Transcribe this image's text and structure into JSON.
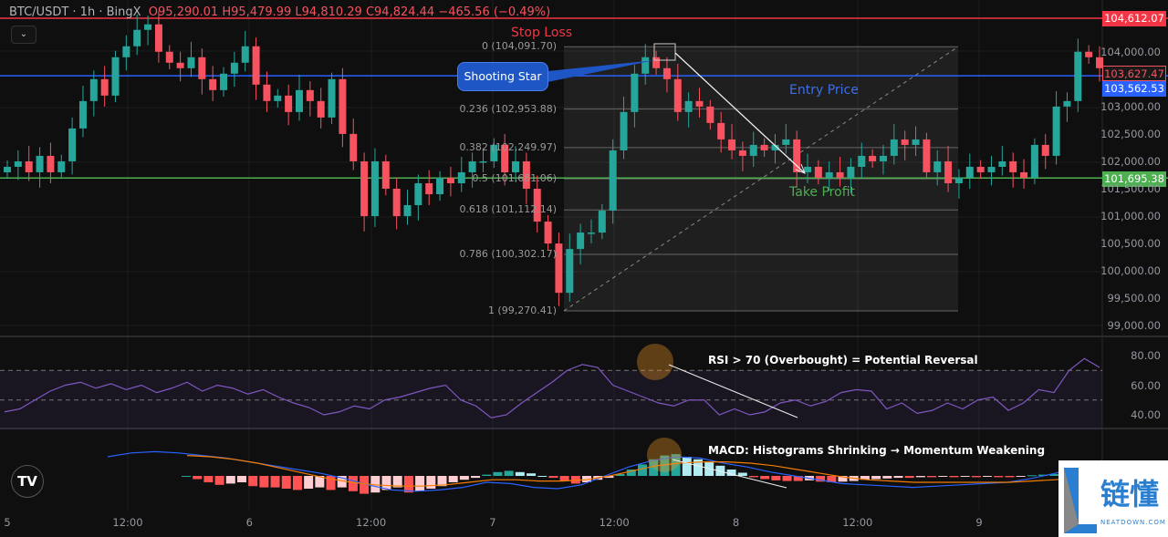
{
  "header": {
    "symbol": "BTC/USDT · 1h · BingX",
    "open": "O95,290.01",
    "high": "H95,479.99",
    "low": "L94,810.29",
    "close": "C94,824.44",
    "change": "−465.56 (−0.49%)"
  },
  "colors": {
    "up": "#26a69a",
    "down": "#f7525f",
    "stop_loss": "#f23645",
    "entry": "#2962ff",
    "take_profit": "#4caf50",
    "rsi": "#7e57c2",
    "macd": "#2962ff",
    "signal": "#f57c00"
  },
  "price_lines": {
    "stop_loss": {
      "label": "Stop Loss",
      "value": "104,612.07"
    },
    "entry": {
      "label": "Entry Price",
      "value": "103,562.53"
    },
    "take_profit": {
      "label": "Take Profit",
      "value": "101,695.38"
    },
    "last_price": "103,627.47"
  },
  "annotations": {
    "pattern": "Shooting Star",
    "rsi_note": "RSI > 70 (Overbought) = Potential Reversal",
    "macd_note": "MACD: Histograms Shrinking → Momentum Weakening"
  },
  "logo": {
    "tv": "TV",
    "watermark_cn": "链懂",
    "watermark_en": "NEATDOWN.COM"
  },
  "chart_data": [
    {
      "type": "candlestick",
      "ylim": [
        99000,
        105000
      ],
      "y_ticks": [
        "104,000.00",
        "103,000.00",
        "102,500.00",
        "102,000.00",
        "101,500.00",
        "101,000.00",
        "100,500.00",
        "100,000.00",
        "99,500.00",
        "99,000.00"
      ],
      "x_ticks": [
        "5",
        "12:00",
        "6",
        "12:00",
        "7",
        "12:00",
        "8",
        "12:00",
        "9"
      ],
      "close": [
        101900,
        102000,
        101800,
        102100,
        101800,
        102000,
        102600,
        103100,
        103500,
        103200,
        103900,
        104100,
        104400,
        104500,
        104000,
        103800,
        103700,
        103900,
        103500,
        103300,
        103600,
        103800,
        104100,
        103400,
        103100,
        103200,
        102900,
        103300,
        103100,
        102800,
        103500,
        102500,
        102000,
        101000,
        102000,
        101500,
        101000,
        101200,
        101600,
        101400,
        101700,
        101600,
        101800,
        102000,
        102000,
        102300,
        101800,
        102000,
        101500,
        100900,
        100500,
        99600,
        100400,
        100700,
        100700,
        101100,
        102200,
        102900,
        103600,
        103900,
        103700,
        103500,
        102900,
        103100,
        103000,
        102700,
        102400,
        102200,
        102100,
        102300,
        102200,
        102300,
        102400,
        101800,
        101900,
        101700,
        101800,
        101700,
        101900,
        102100,
        102000,
        102100,
        102400,
        102300,
        102400,
        101800,
        102000,
        101600,
        101700,
        101900,
        101800,
        101900,
        102000,
        101800,
        101700,
        102300,
        102100,
        103000,
        103100,
        104000,
        103900,
        103700
      ],
      "fibonacci": [
        {
          "ratio": "0",
          "price": 104091.7,
          "label": "0 (104,091.70)"
        },
        {
          "ratio": "0.236",
          "price": 102953.88,
          "label": "0.236 (102,953.88)"
        },
        {
          "ratio": "0.382",
          "price": 102249.97,
          "label": "0.382 (102,249.97)"
        },
        {
          "ratio": "0.5",
          "price": 101681.06,
          "label": "0.5 (101,681.06)"
        },
        {
          "ratio": "0.618",
          "price": 101112.14,
          "label": "0.618 (101,112.14)"
        },
        {
          "ratio": "0.786",
          "price": 100302.17,
          "label": "0.786 (100,302.17)"
        },
        {
          "ratio": "1",
          "price": 99270.41,
          "label": "1 (99,270.41)"
        }
      ]
    },
    {
      "type": "line",
      "name": "RSI",
      "ylim": [
        33,
        86
      ],
      "levels": [
        70,
        50
      ],
      "y_ticks": [
        "80.00",
        "60.00",
        "40.00"
      ],
      "values": [
        42,
        44,
        50,
        56,
        60,
        62,
        58,
        61,
        57,
        60,
        55,
        58,
        62,
        56,
        60,
        58,
        54,
        57,
        52,
        48,
        45,
        40,
        42,
        46,
        44,
        50,
        52,
        55,
        58,
        60,
        50,
        46,
        38,
        40,
        48,
        55,
        62,
        70,
        74,
        72,
        60,
        56,
        52,
        48,
        46,
        50,
        50,
        40,
        44,
        40,
        42,
        48,
        50,
        46,
        49,
        55,
        57,
        56,
        44,
        48,
        41,
        43,
        48,
        44,
        50,
        52,
        43,
        48,
        57,
        55,
        70,
        78,
        72
      ],
      "x_positions": "evenly spaced"
    },
    {
      "type": "bar+line",
      "name": "MACD",
      "histogram": [
        0,
        -5,
        -10,
        -14,
        -12,
        -10,
        -16,
        -18,
        -18,
        -20,
        -22,
        -20,
        -18,
        -22,
        -18,
        -24,
        -28,
        -26,
        -22,
        -18,
        -26,
        -24,
        -20,
        -16,
        -10,
        -6,
        -3,
        2,
        6,
        8,
        6,
        4,
        0,
        -3,
        -8,
        -12,
        -10,
        -6,
        -3,
        3,
        10,
        18,
        26,
        32,
        34,
        30,
        26,
        22,
        16,
        10,
        5,
        -2,
        -5,
        -7,
        -8,
        -8,
        -7,
        -9,
        -10,
        -9,
        -8,
        -6,
        -5,
        -4,
        -3,
        -3,
        -2,
        -2,
        -1,
        -2,
        -1,
        -2,
        -1,
        -2,
        -2,
        -1,
        1,
        2,
        3,
        5,
        8,
        12,
        16
      ],
      "macd": [
        30,
        36,
        38,
        36,
        32,
        28,
        22,
        16,
        10,
        4,
        -4,
        -14,
        -22,
        -24,
        -22,
        -18,
        -10,
        -12,
        -18,
        -20,
        -14,
        0,
        14,
        24,
        30,
        28,
        20,
        14,
        6,
        0,
        -6,
        -12,
        -14,
        -16,
        -18,
        -16,
        -14,
        -12,
        -10,
        -4,
        4,
        14,
        24
      ],
      "signal": [
        32,
        30,
        26,
        20,
        12,
        4,
        -4,
        -10,
        -14,
        -16,
        -16,
        -14,
        -10,
        -6,
        -6,
        -8,
        -8,
        -6,
        0,
        8,
        16,
        20,
        22,
        22,
        20,
        16,
        10,
        4,
        -2,
        -6,
        -8,
        -10,
        -10,
        -10,
        -10,
        -10,
        -8,
        -6,
        -2,
        4
      ]
    }
  ]
}
